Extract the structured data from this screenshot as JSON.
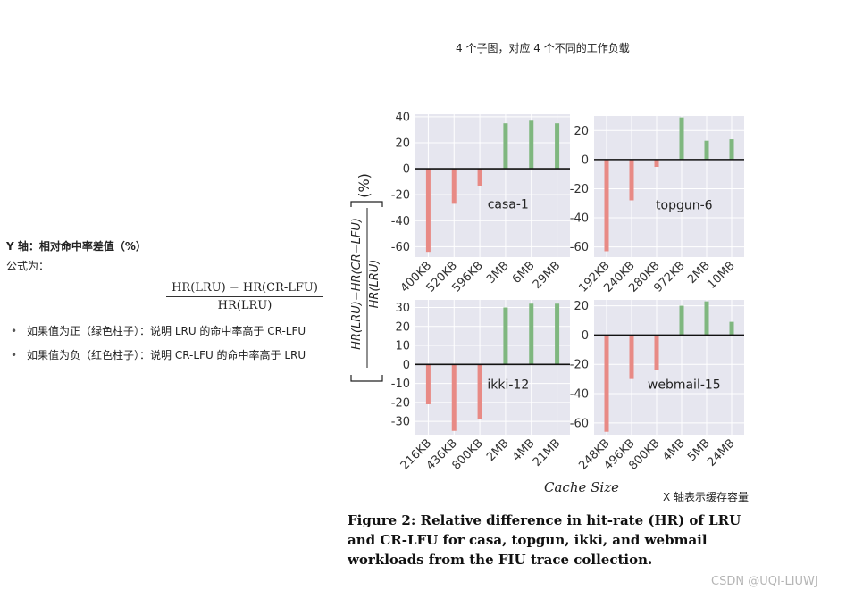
{
  "top_note": "4 个子图，对应 4 个不同的工作负载",
  "y_axis_note": {
    "title": "Y 轴：相对命中率差值（%）",
    "formula_label": "公式为：",
    "formula_numerator": "HR(LRU) − HR(CR-LFU)",
    "formula_denominator": "HR(LRU)",
    "bullets": [
      "如果值为正（绿色柱子）：说明 LRU 的命中率高于 CR-LFU",
      "如果值为负（红色柱子）：说明 CR-LFU 的命中率高于 LRU"
    ]
  },
  "x_axis_note": "X 轴表示缓存容量",
  "caption": {
    "label": "Figure 2:",
    "text": "Relative difference in hit-rate (HR) of LRU and CR-LFU for casa, topgun, ikki, and webmail workloads from the FIU trace collection."
  },
  "watermark": "CSDN @UQI-LIUWJ",
  "colors": {
    "positive": "#7fb77f",
    "negative": "#e88a85",
    "panel_bg": "#e6e6ef",
    "grid": "#ffffff",
    "zero_line": "#111111"
  },
  "chart_data": [
    {
      "type": "bar",
      "title": "casa-1",
      "categories": [
        "400KB",
        "520KB",
        "596KB",
        "3MB",
        "6MB",
        "29MB"
      ],
      "values": [
        -64,
        -27,
        -13,
        35,
        37,
        35
      ],
      "ylim": [
        -68,
        42
      ],
      "yticks": [
        -60,
        -40,
        -20,
        0,
        20,
        40
      ]
    },
    {
      "type": "bar",
      "title": "topgun-6",
      "categories": [
        "192KB",
        "240KB",
        "280KB",
        "972KB",
        "2MB",
        "10MB"
      ],
      "values": [
        -63,
        -28,
        -5,
        29,
        13,
        14
      ],
      "ylim": [
        -67,
        30
      ],
      "yticks": [
        -60,
        -40,
        -20,
        0,
        20
      ]
    },
    {
      "type": "bar",
      "title": "ikki-12",
      "categories": [
        "216KB",
        "436KB",
        "800KB",
        "2MB",
        "4MB",
        "21MB"
      ],
      "values": [
        -21,
        -35,
        -29,
        30,
        32,
        32
      ],
      "ylim": [
        -37,
        34
      ],
      "yticks": [
        -30,
        -20,
        -10,
        0,
        10,
        20,
        30
      ]
    },
    {
      "type": "bar",
      "title": "webmail-15",
      "categories": [
        "248KB",
        "496KB",
        "800KB",
        "4MB",
        "5MB",
        "24MB"
      ],
      "values": [
        -66,
        -30,
        -24,
        20,
        23,
        9
      ],
      "ylim": [
        -68,
        24
      ],
      "yticks": [
        -60,
        -40,
        -20,
        0,
        20
      ]
    }
  ],
  "axes": {
    "ylabel_numerator": "HR(LRU)−HR(CR−LFU)",
    "ylabel_denominator": "HR(LRU)",
    "ylabel_unit": "(%)",
    "xlabel": "Cache Size"
  }
}
